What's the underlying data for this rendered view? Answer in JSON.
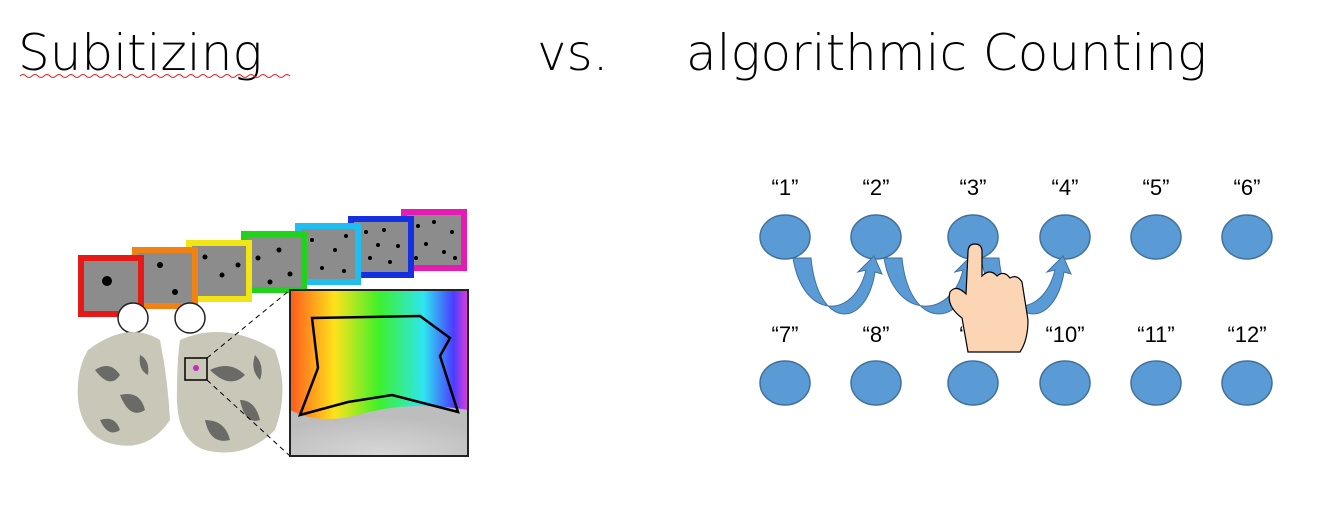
{
  "title": {
    "left": "Subitizing",
    "middle": "vs.",
    "right": "algorithmic Counting"
  },
  "counting": {
    "labels": [
      "“1”",
      "“2”",
      "“3”",
      "“4”",
      "“5”",
      "“6”",
      "“7”",
      "“8”",
      "“9”",
      "“10”",
      "“11”",
      "“12”"
    ]
  }
}
